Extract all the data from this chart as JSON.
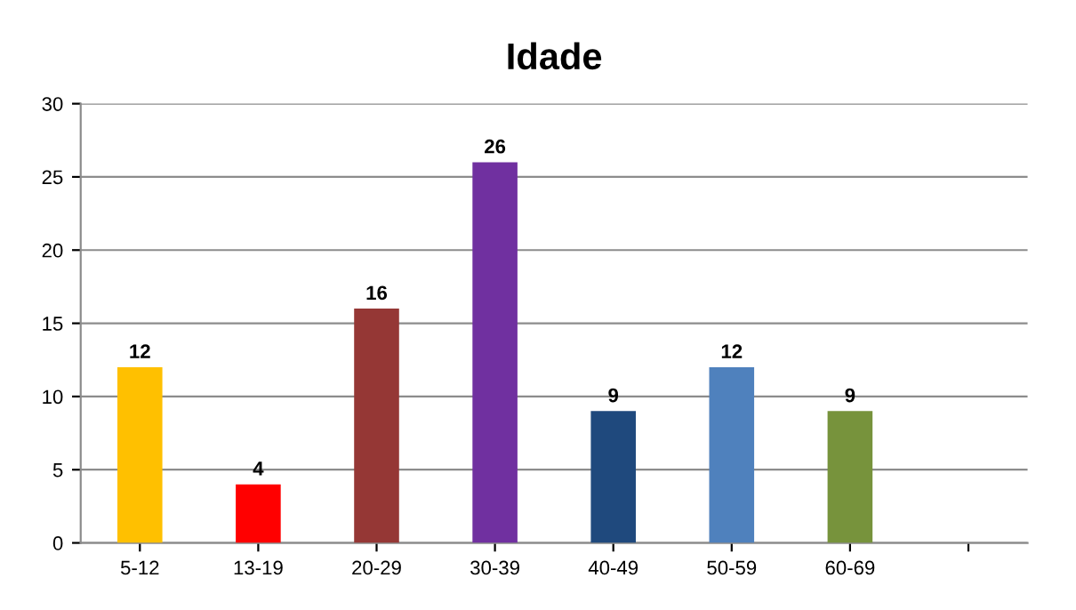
{
  "chart_data": {
    "type": "bar",
    "title": "Idade",
    "categories": [
      "5-12",
      "13-19",
      "20-29",
      "30-39",
      "40-49",
      "50-59",
      "60-69",
      null
    ],
    "values": [
      12,
      4,
      16,
      26,
      9,
      12,
      9,
      null
    ],
    "colors": [
      "#ffc000",
      "#ff0000",
      "#953735",
      "#7030a0",
      "#1f497d",
      "#4f81bd",
      "#77933c",
      "#ffffff"
    ],
    "ylim": [
      0,
      30
    ],
    "yticks": [
      0,
      5,
      10,
      15,
      20,
      25,
      30
    ],
    "grid": "y",
    "data_labels": true
  }
}
